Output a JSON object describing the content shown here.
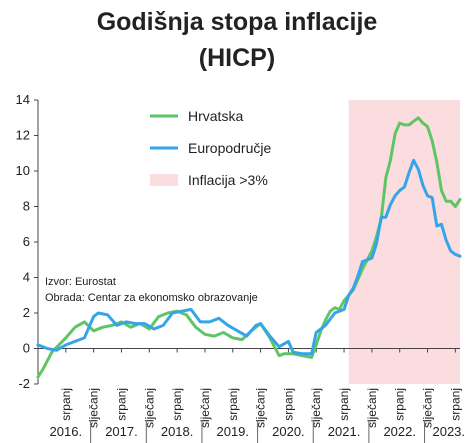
{
  "chart_data": {
    "type": "line",
    "title": [
      "Godišnja stopa inflacije",
      "(HICP)"
    ],
    "xlabel": "",
    "ylabel": "",
    "ylim": [
      -2,
      14
    ],
    "yticks": [
      -2,
      0,
      2,
      4,
      6,
      8,
      10,
      12,
      14
    ],
    "grid": false,
    "legend_position": "top-center",
    "x_start": "2016-01",
    "x_end": "2023-08",
    "month_labels": [
      {
        "label": "srpanj",
        "date": "2016-07"
      },
      {
        "label": "siječanj",
        "date": "2017-01"
      },
      {
        "label": "srpanj",
        "date": "2017-07"
      },
      {
        "label": "siječanj",
        "date": "2018-01"
      },
      {
        "label": "srpanj",
        "date": "2018-07"
      },
      {
        "label": "siječanj",
        "date": "2019-01"
      },
      {
        "label": "srpanj",
        "date": "2019-07"
      },
      {
        "label": "siječanj",
        "date": "2020-01"
      },
      {
        "label": "srpanj",
        "date": "2020-07"
      },
      {
        "label": "siječanj",
        "date": "2021-01"
      },
      {
        "label": "srpanj",
        "date": "2021-07"
      },
      {
        "label": "siječanj",
        "date": "2022-01"
      },
      {
        "label": "srpanj",
        "date": "2022-07"
      },
      {
        "label": "siječanj",
        "date": "2023-01"
      },
      {
        "label": "srpanj",
        "date": "2023-07"
      }
    ],
    "year_labels": [
      {
        "label": "2016.",
        "year": 2016
      },
      {
        "label": "2017.",
        "year": 2017
      },
      {
        "label": "2018.",
        "year": 2018
      },
      {
        "label": "2019.",
        "year": 2019
      },
      {
        "label": "2020.",
        "year": 2020
      },
      {
        "label": "2021.",
        "year": 2021
      },
      {
        "label": "2022.",
        "year": 2022
      },
      {
        "label": "2023.",
        "year": 2023
      }
    ],
    "highlight": {
      "label": "Inflacija >3%",
      "from": "2021-08",
      "to": "2023-08",
      "color": "#fbdde0"
    },
    "series": [
      {
        "name": "Hrvatska",
        "color": "#5fc463",
        "points": [
          [
            "2016-01",
            -1.6
          ],
          [
            "2016-02",
            -1.2
          ],
          [
            "2016-04",
            -0.2
          ],
          [
            "2016-07",
            0.6
          ],
          [
            "2016-09",
            1.2
          ],
          [
            "2016-11",
            1.5
          ],
          [
            "2017-01",
            1.0
          ],
          [
            "2017-03",
            1.2
          ],
          [
            "2017-05",
            1.3
          ],
          [
            "2017-07",
            1.5
          ],
          [
            "2017-09",
            1.2
          ],
          [
            "2017-11",
            1.4
          ],
          [
            "2018-01",
            1.1
          ],
          [
            "2018-03",
            1.8
          ],
          [
            "2018-05",
            2.0
          ],
          [
            "2018-07",
            2.1
          ],
          [
            "2018-09",
            1.9
          ],
          [
            "2018-11",
            1.2
          ],
          [
            "2019-01",
            0.8
          ],
          [
            "2019-03",
            0.7
          ],
          [
            "2019-05",
            0.9
          ],
          [
            "2019-07",
            0.6
          ],
          [
            "2019-09",
            0.5
          ],
          [
            "2019-11",
            1.0
          ],
          [
            "2020-01",
            1.4
          ],
          [
            "2020-03",
            0.6
          ],
          [
            "2020-05",
            -0.4
          ],
          [
            "2020-06",
            -0.3
          ],
          [
            "2020-08",
            -0.3
          ],
          [
            "2020-10",
            -0.4
          ],
          [
            "2020-12",
            -0.5
          ],
          [
            "2021-01",
            0.2
          ],
          [
            "2021-02",
            1.0
          ],
          [
            "2021-03",
            1.6
          ],
          [
            "2021-04",
            2.1
          ],
          [
            "2021-05",
            2.3
          ],
          [
            "2021-06",
            2.2
          ],
          [
            "2021-07",
            2.7
          ],
          [
            "2021-08",
            3.0
          ],
          [
            "2021-09",
            3.3
          ],
          [
            "2021-10",
            3.9
          ],
          [
            "2021-11",
            4.5
          ],
          [
            "2021-12",
            5.0
          ],
          [
            "2022-01",
            5.5
          ],
          [
            "2022-02",
            6.3
          ],
          [
            "2022-03",
            7.3
          ],
          [
            "2022-04",
            9.6
          ],
          [
            "2022-05",
            10.6
          ],
          [
            "2022-06",
            12.1
          ],
          [
            "2022-07",
            12.7
          ],
          [
            "2022-08",
            12.6
          ],
          [
            "2022-09",
            12.6
          ],
          [
            "2022-10",
            12.8
          ],
          [
            "2022-11",
            13.0
          ],
          [
            "2022-12",
            12.7
          ],
          [
            "2023-01",
            12.5
          ],
          [
            "2023-02",
            11.7
          ],
          [
            "2023-03",
            10.5
          ],
          [
            "2023-04",
            8.9
          ],
          [
            "2023-05",
            8.3
          ],
          [
            "2023-06",
            8.3
          ],
          [
            "2023-07",
            8.0
          ],
          [
            "2023-08",
            8.4
          ]
        ]
      },
      {
        "name": "Europodručje",
        "color": "#35a4e8",
        "points": [
          [
            "2016-01",
            0.2
          ],
          [
            "2016-03",
            0.0
          ],
          [
            "2016-05",
            -0.1
          ],
          [
            "2016-07",
            0.2
          ],
          [
            "2016-09",
            0.4
          ],
          [
            "2016-11",
            0.6
          ],
          [
            "2017-01",
            1.8
          ],
          [
            "2017-02",
            2.0
          ],
          [
            "2017-04",
            1.9
          ],
          [
            "2017-06",
            1.3
          ],
          [
            "2017-08",
            1.5
          ],
          [
            "2017-10",
            1.4
          ],
          [
            "2017-12",
            1.4
          ],
          [
            "2018-02",
            1.1
          ],
          [
            "2018-04",
            1.3
          ],
          [
            "2018-06",
            2.0
          ],
          [
            "2018-08",
            2.1
          ],
          [
            "2018-10",
            2.2
          ],
          [
            "2018-12",
            1.5
          ],
          [
            "2019-02",
            1.5
          ],
          [
            "2019-04",
            1.7
          ],
          [
            "2019-06",
            1.3
          ],
          [
            "2019-08",
            1.0
          ],
          [
            "2019-10",
            0.7
          ],
          [
            "2019-12",
            1.3
          ],
          [
            "2020-01",
            1.4
          ],
          [
            "2020-03",
            0.7
          ],
          [
            "2020-05",
            0.1
          ],
          [
            "2020-07",
            0.4
          ],
          [
            "2020-08",
            -0.2
          ],
          [
            "2020-10",
            -0.3
          ],
          [
            "2020-12",
            -0.3
          ],
          [
            "2021-01",
            0.9
          ],
          [
            "2021-03",
            1.3
          ],
          [
            "2021-05",
            2.0
          ],
          [
            "2021-07",
            2.2
          ],
          [
            "2021-08",
            3.0
          ],
          [
            "2021-09",
            3.4
          ],
          [
            "2021-10",
            4.1
          ],
          [
            "2021-11",
            4.9
          ],
          [
            "2021-12",
            5.0
          ],
          [
            "2022-01",
            5.1
          ],
          [
            "2022-02",
            5.9
          ],
          [
            "2022-03",
            7.4
          ],
          [
            "2022-04",
            7.4
          ],
          [
            "2022-05",
            8.1
          ],
          [
            "2022-06",
            8.6
          ],
          [
            "2022-07",
            8.9
          ],
          [
            "2022-08",
            9.1
          ],
          [
            "2022-09",
            9.9
          ],
          [
            "2022-10",
            10.6
          ],
          [
            "2022-11",
            10.1
          ],
          [
            "2022-12",
            9.2
          ],
          [
            "2023-01",
            8.6
          ],
          [
            "2023-02",
            8.5
          ],
          [
            "2023-03",
            6.9
          ],
          [
            "2023-04",
            7.0
          ],
          [
            "2023-05",
            6.1
          ],
          [
            "2023-06",
            5.5
          ],
          [
            "2023-07",
            5.3
          ],
          [
            "2023-08",
            5.2
          ]
        ]
      }
    ],
    "notes": [
      "Izvor: Eurostat",
      "Obrada: Centar za ekonomsko obrazovanje"
    ]
  }
}
